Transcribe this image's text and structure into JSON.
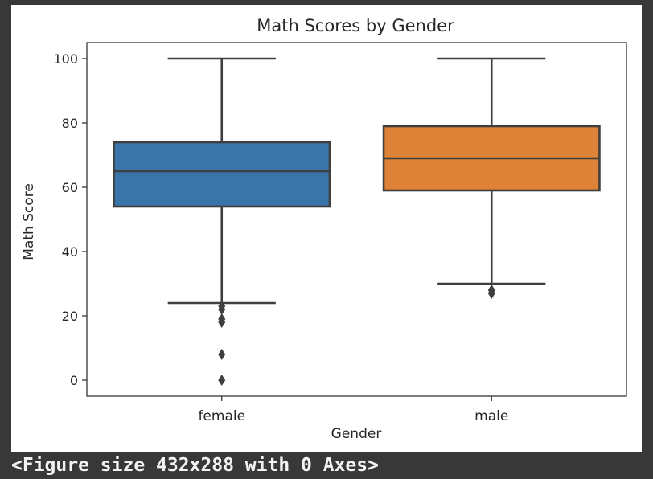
{
  "output_text": "<Figure size 432x288 with 0 Axes>",
  "colors": {
    "background": "#383838",
    "plot_background": "#ffffff",
    "female_box": "#3a75a9",
    "male_box": "#dd8236",
    "lines": "#3f3f3f"
  },
  "chart_data": {
    "type": "box",
    "title": "Math Scores by Gender",
    "xlabel": "Gender",
    "ylabel": "Math Score",
    "categories": [
      "female",
      "male"
    ],
    "ylim": [
      -5,
      105
    ],
    "y_ticks": [
      0,
      20,
      40,
      60,
      80,
      100
    ],
    "grid": false,
    "boxes": [
      {
        "category": "female",
        "whisker_low": 24,
        "q1": 54,
        "median": 65,
        "q3": 74,
        "whisker_high": 100,
        "outliers": [
          23,
          22,
          19,
          18,
          8,
          0
        ],
        "color": "#3a75a9"
      },
      {
        "category": "male",
        "whisker_low": 30,
        "q1": 59,
        "median": 69,
        "q3": 79,
        "whisker_high": 100,
        "outliers": [
          28,
          27
        ],
        "color": "#dd8236"
      }
    ]
  }
}
